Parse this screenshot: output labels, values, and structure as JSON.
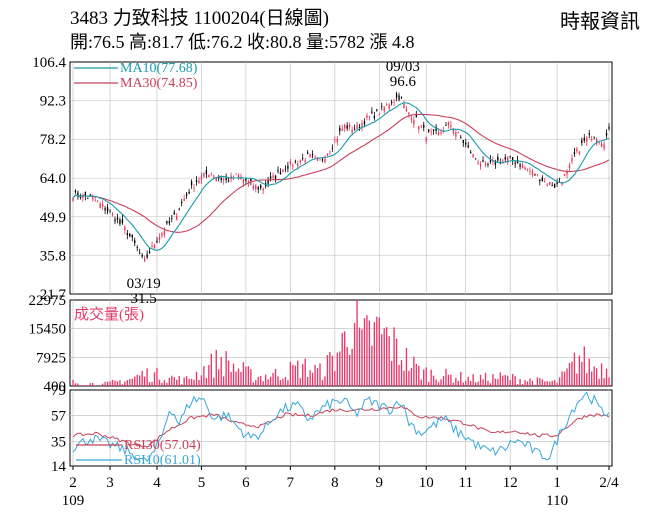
{
  "header": {
    "title": "3483  力致科技 1100204(日線圖)",
    "source": "時報資訊",
    "ohlc": "開:76.5 高:81.7 低:76.2 收:80.8 量:5782 漲 4.8"
  },
  "colors": {
    "up": "#e8355a",
    "down": "#000000",
    "ma10": "#1a9ba8",
    "ma30": "#c8405a",
    "volume": "#e8386a",
    "rsi30": "#c8405a",
    "rsi10": "#3aa6d8",
    "grid": "#bbbbbb"
  },
  "chart_data": [
    {
      "type": "candlestick",
      "name": "price",
      "ylim": [
        21.7,
        106.4
      ],
      "y_ticks": [
        "106.4",
        "92.3",
        "78.2",
        "64.0",
        "49.9",
        "35.8",
        "21.7"
      ],
      "legend": [
        {
          "label": "MA10(77.68)",
          "color": "#1a9ba8"
        },
        {
          "label": "MA30(74.85)",
          "color": "#c8405a"
        }
      ],
      "annotations": [
        {
          "text": "09/03",
          "x_index": 112
        },
        {
          "text": "96.6",
          "x_index": 112
        },
        {
          "text": "03/19",
          "x_index": 24
        },
        {
          "text": "31.5",
          "x_index": 24
        }
      ],
      "close_anchors": [
        [
          0,
          58
        ],
        [
          6,
          57
        ],
        [
          12,
          52
        ],
        [
          18,
          45
        ],
        [
          22,
          38
        ],
        [
          24,
          33
        ],
        [
          26,
          37
        ],
        [
          30,
          44
        ],
        [
          34,
          49
        ],
        [
          38,
          57
        ],
        [
          42,
          63
        ],
        [
          46,
          66
        ],
        [
          52,
          63
        ],
        [
          56,
          65
        ],
        [
          60,
          62
        ],
        [
          64,
          60
        ],
        [
          68,
          64
        ],
        [
          72,
          68
        ],
        [
          76,
          70
        ],
        [
          80,
          72
        ],
        [
          84,
          70
        ],
        [
          88,
          76
        ],
        [
          92,
          83
        ],
        [
          96,
          82
        ],
        [
          100,
          86
        ],
        [
          104,
          88
        ],
        [
          108,
          92
        ],
        [
          111,
          94
        ],
        [
          113,
          89
        ],
        [
          116,
          86
        ],
        [
          120,
          80
        ],
        [
          124,
          80
        ],
        [
          128,
          84
        ],
        [
          132,
          78
        ],
        [
          136,
          72
        ],
        [
          140,
          68
        ],
        [
          144,
          70
        ],
        [
          148,
          71
        ],
        [
          152,
          69
        ],
        [
          156,
          66
        ],
        [
          160,
          63
        ],
        [
          164,
          61
        ],
        [
          168,
          66
        ],
        [
          170,
          72
        ],
        [
          174,
          78
        ],
        [
          177,
          80
        ],
        [
          180,
          77
        ],
        [
          182,
          80.8
        ]
      ],
      "volume_ylim": [
        400,
        22975
      ],
      "volume_ticks": [
        "22975",
        "15450",
        "7925",
        "400"
      ],
      "volume_label": "成交量(張)",
      "volume_anchors": [
        [
          0,
          1500
        ],
        [
          10,
          900
        ],
        [
          20,
          2500
        ],
        [
          24,
          4000
        ],
        [
          30,
          3500
        ],
        [
          38,
          2000
        ],
        [
          50,
          8000
        ],
        [
          56,
          5500
        ],
        [
          62,
          3000
        ],
        [
          70,
          4000
        ],
        [
          78,
          6000
        ],
        [
          84,
          4500
        ],
        [
          88,
          8000
        ],
        [
          92,
          13000
        ],
        [
          95,
          22975
        ],
        [
          98,
          12000
        ],
        [
          100,
          15000
        ],
        [
          104,
          16000
        ],
        [
          108,
          13000
        ],
        [
          112,
          9000
        ],
        [
          118,
          4500
        ],
        [
          126,
          3500
        ],
        [
          136,
          2500
        ],
        [
          146,
          3000
        ],
        [
          156,
          2000
        ],
        [
          164,
          1500
        ],
        [
          168,
          4500
        ],
        [
          172,
          9000
        ],
        [
          176,
          6000
        ],
        [
          182,
          5782
        ]
      ],
      "rsi_ylim": [
        14,
        79
      ],
      "rsi_ticks": [
        "79",
        "57",
        "35",
        "14"
      ],
      "rsi_legend": [
        {
          "label": "RSI30(57.04)",
          "color": "#c8405a"
        },
        {
          "label": "RSI10(61.01)",
          "color": "#3aa6d8"
        }
      ],
      "rsi10_anchors": [
        [
          0,
          30
        ],
        [
          6,
          38
        ],
        [
          12,
          33
        ],
        [
          18,
          27
        ],
        [
          22,
          22
        ],
        [
          24,
          17
        ],
        [
          27,
          23
        ],
        [
          30,
          38
        ],
        [
          33,
          65
        ],
        [
          36,
          50
        ],
        [
          40,
          70
        ],
        [
          44,
          72
        ],
        [
          48,
          54
        ],
        [
          52,
          58
        ],
        [
          56,
          47
        ],
        [
          60,
          38
        ],
        [
          64,
          42
        ],
        [
          68,
          56
        ],
        [
          72,
          63
        ],
        [
          76,
          66
        ],
        [
          80,
          54
        ],
        [
          84,
          62
        ],
        [
          88,
          68
        ],
        [
          92,
          70
        ],
        [
          96,
          58
        ],
        [
          100,
          70
        ],
        [
          104,
          66
        ],
        [
          108,
          62
        ],
        [
          111,
          72
        ],
        [
          114,
          52
        ],
        [
          118,
          42
        ],
        [
          122,
          48
        ],
        [
          126,
          55
        ],
        [
          130,
          44
        ],
        [
          134,
          38
        ],
        [
          138,
          30
        ],
        [
          142,
          26
        ],
        [
          146,
          28
        ],
        [
          150,
          36
        ],
        [
          154,
          32
        ],
        [
          158,
          24
        ],
        [
          162,
          22
        ],
        [
          165,
          40
        ],
        [
          168,
          55
        ],
        [
          171,
          68
        ],
        [
          174,
          76
        ],
        [
          177,
          70
        ],
        [
          180,
          58
        ],
        [
          182,
          61
        ]
      ],
      "rsi30_anchors": [
        [
          0,
          40
        ],
        [
          8,
          42
        ],
        [
          16,
          36
        ],
        [
          22,
          31
        ],
        [
          26,
          32
        ],
        [
          32,
          44
        ],
        [
          40,
          55
        ],
        [
          48,
          58
        ],
        [
          56,
          50
        ],
        [
          64,
          48
        ],
        [
          72,
          58
        ],
        [
          80,
          57
        ],
        [
          88,
          62
        ],
        [
          96,
          62
        ],
        [
          104,
          63
        ],
        [
          111,
          65
        ],
        [
          118,
          56
        ],
        [
          126,
          55
        ],
        [
          134,
          50
        ],
        [
          142,
          42
        ],
        [
          150,
          44
        ],
        [
          158,
          40
        ],
        [
          164,
          40
        ],
        [
          168,
          48
        ],
        [
          172,
          55
        ],
        [
          176,
          58
        ],
        [
          182,
          57.04
        ]
      ],
      "x_ticks": [
        {
          "label": "2",
          "x_index": 0
        },
        {
          "label": "3",
          "x_index": 15
        },
        {
          "label": "4",
          "x_index": 34
        },
        {
          "label": "5",
          "x_index": 52
        },
        {
          "label": "6",
          "x_index": 70
        },
        {
          "label": "7",
          "x_index": 88
        },
        {
          "label": "8",
          "x_index": 106
        },
        {
          "label": "9",
          "x_index": 124
        },
        {
          "label": "10",
          "x_index": 143
        },
        {
          "label": "11",
          "x_index": 159
        },
        {
          "label": "12",
          "x_index": 177
        },
        {
          "label": "1",
          "x_index": 196
        },
        {
          "label": "2/4",
          "x_index": 217
        }
      ],
      "x_sub_labels": [
        {
          "label": "109",
          "x_index": 0
        },
        {
          "label": "110",
          "x_index": 196
        }
      ],
      "n_bars": 218
    }
  ]
}
